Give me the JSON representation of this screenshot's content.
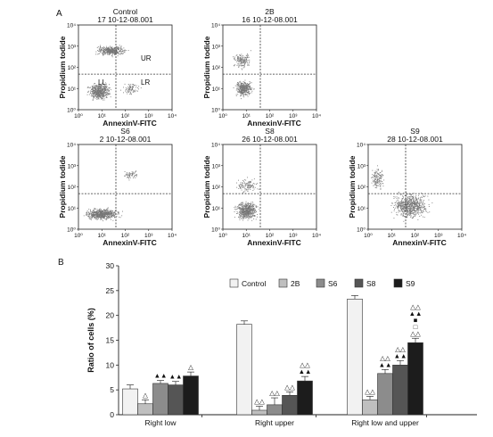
{
  "panel_a": {
    "label": "A",
    "x_axis_label": "AnnexinV-FITC",
    "y_axis_label": "Propidium todide",
    "tick_labels": [
      "10⁰",
      "10¹",
      "10²",
      "10³",
      "10⁴"
    ],
    "quadrant_labels": [
      "UR",
      "LL",
      "LR"
    ],
    "plots": [
      {
        "name": "Control",
        "file": "17 10-12-08.001"
      },
      {
        "name": "2B",
        "file": "16 10-12-08.001"
      },
      {
        "name": "S6",
        "file": "2 10-12-08.001"
      },
      {
        "name": "S8",
        "file": "26 10-12-08.001"
      },
      {
        "name": "S9",
        "file": "28 10-12-08.001"
      }
    ]
  },
  "chart_data": {
    "type": "bar",
    "panel_label": "B",
    "title": "",
    "xlabel": "",
    "ylabel": "Ratio of cells (%)",
    "ylim": [
      0,
      30
    ],
    "yticks": [
      0,
      5,
      10,
      15,
      20,
      25,
      30
    ],
    "categories": [
      "Right low",
      "Right upper",
      "Right low and upper"
    ],
    "legend_position": "top-right",
    "series": [
      {
        "name": "Control",
        "color": "#f2f2f2",
        "values": [
          5.2,
          18.2,
          23.3
        ],
        "errors": [
          0.8,
          0.7,
          0.7
        ],
        "annotations": [
          "",
          "",
          ""
        ]
      },
      {
        "name": "2B",
        "color": "#bfbfbf",
        "values": [
          2.2,
          0.9,
          3.0
        ],
        "errors": [
          0.8,
          0.8,
          0.7
        ],
        "annotations": [
          "△",
          "△△",
          "△△"
        ]
      },
      {
        "name": "S6",
        "color": "#8c8c8c",
        "values": [
          6.3,
          2.0,
          8.3
        ],
        "errors": [
          0.6,
          1.4,
          0.8
        ],
        "annotations": [
          "▲▲",
          "△△",
          "△△\n▲▲"
        ]
      },
      {
        "name": "S8",
        "color": "#555555",
        "values": [
          6.0,
          3.9,
          10.0
        ],
        "errors": [
          0.7,
          0.7,
          0.9
        ],
        "annotations": [
          "▲▲",
          "△△",
          "△△\n▲▲"
        ]
      },
      {
        "name": "S9",
        "color": "#1c1c1c",
        "values": [
          7.8,
          6.8,
          14.5
        ],
        "errors": [
          0.8,
          0.9,
          0.9
        ],
        "annotations": [
          "△",
          "△△\n▲▲",
          "△△\n▲▲\n■\n□\n△△"
        ]
      }
    ]
  }
}
